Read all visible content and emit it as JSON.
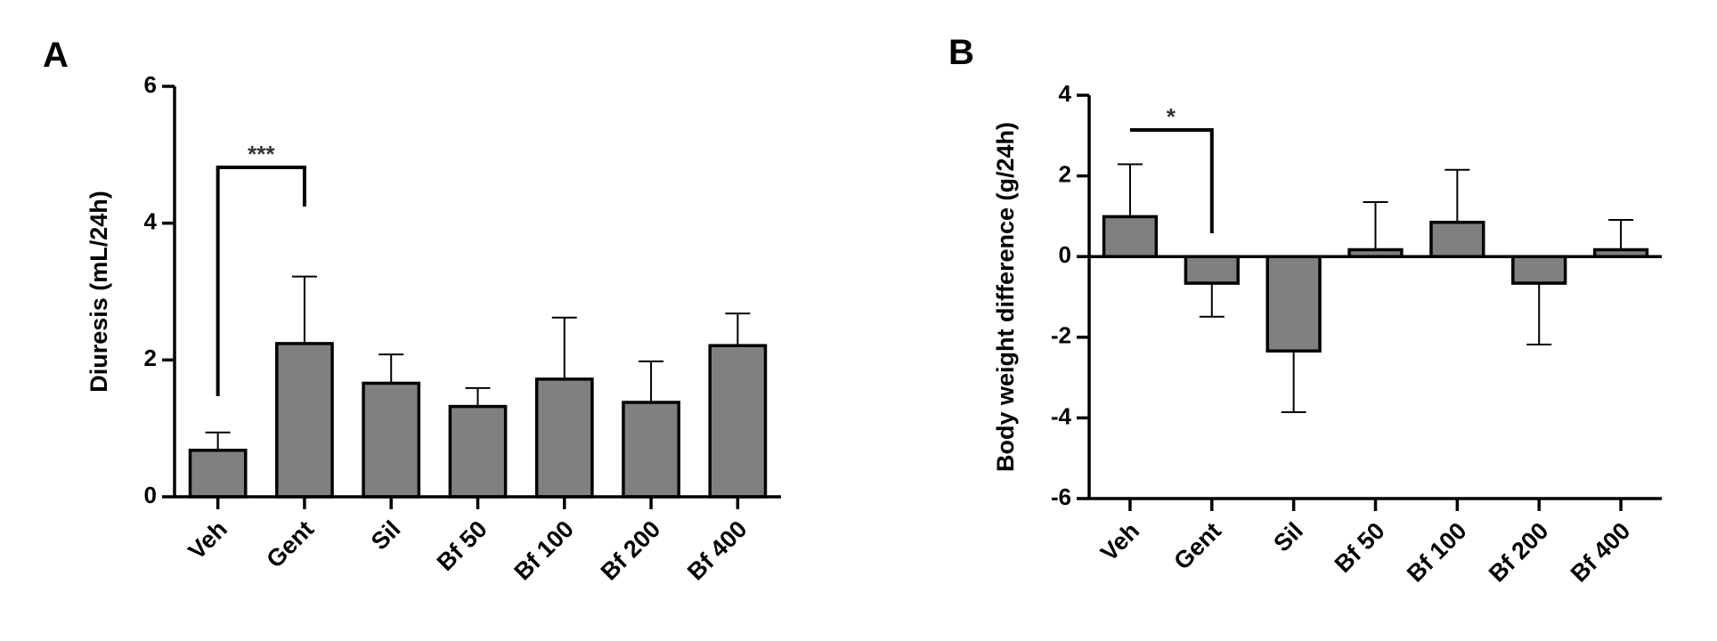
{
  "chart_data": [
    {
      "type": "bar",
      "panel": "A",
      "y_label": "Diuresis (mL/24h)",
      "categories": [
        "Veh",
        "Gent",
        "Sil",
        "Bf 50",
        "Bf 100",
        "Bf 200",
        "Bf 400"
      ],
      "values": [
        0.68,
        2.24,
        1.66,
        1.32,
        1.72,
        1.38,
        2.21
      ],
      "errors": [
        0.26,
        0.98,
        0.42,
        0.27,
        0.9,
        0.6,
        0.47
      ],
      "color": "#808080",
      "ylim": [
        0,
        6
      ],
      "yticks": [
        0,
        2,
        4,
        6
      ],
      "annotation": "***"
    },
    {
      "type": "bar",
      "panel": "B",
      "y_label": "Body weight difference (g/24h)",
      "categories": [
        "Veh",
        "Gent",
        "Sil",
        "Bf 50",
        "Bf 100",
        "Bf 200",
        "Bf 400"
      ],
      "values": [
        0.99,
        -0.66,
        -2.34,
        0.17,
        0.85,
        -0.66,
        0.17
      ],
      "errors": [
        1.3,
        0.83,
        1.52,
        1.18,
        1.3,
        1.52,
        0.74
      ],
      "color": "#808080",
      "ylim": [
        -6,
        4
      ],
      "yticks": [
        -6,
        -4,
        -2,
        0,
        2,
        4
      ],
      "annotation": "*"
    }
  ]
}
